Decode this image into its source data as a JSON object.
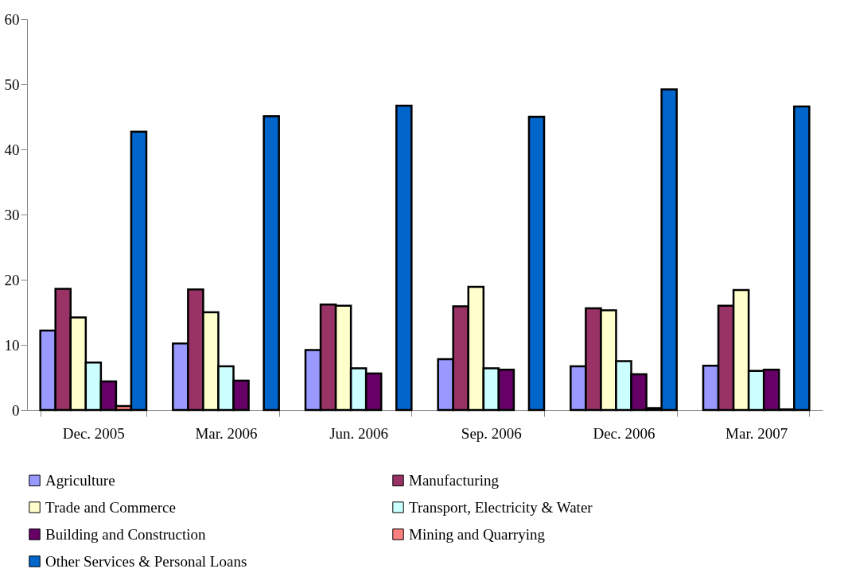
{
  "chart_data": {
    "type": "bar",
    "categories": [
      "Dec. 2005",
      "Mar. 2006",
      "Jun. 2006",
      "Sep. 2006",
      "Dec. 2006",
      "Mar. 2007"
    ],
    "series": [
      {
        "name": "Agriculture",
        "color": "#9999ff",
        "values": [
          12.2,
          10.2,
          9.2,
          7.8,
          6.7,
          6.8
        ]
      },
      {
        "name": "Manufacturing",
        "color": "#993366",
        "values": [
          18.6,
          18.5,
          16.2,
          15.9,
          15.6,
          16.0
        ]
      },
      {
        "name": "Trade and Commerce",
        "color": "#ffffcc",
        "values": [
          14.2,
          15.0,
          16.0,
          18.9,
          15.3,
          18.4
        ]
      },
      {
        "name": "Transport, Electricity & Water",
        "color": "#ccffff",
        "values": [
          7.3,
          6.7,
          6.4,
          6.4,
          7.5,
          6.0
        ]
      },
      {
        "name": "Building and Construction",
        "color": "#660066",
        "values": [
          4.4,
          4.5,
          5.6,
          6.2,
          5.5,
          6.2
        ]
      },
      {
        "name": "Mining and Quarrying",
        "color": "#ff8080",
        "values": [
          0.6,
          null,
          null,
          null,
          0.3,
          0.1
        ]
      },
      {
        "name": "Other Services & Personal Loans",
        "color": "#0066cc",
        "values": [
          42.7,
          45.1,
          46.7,
          45.0,
          49.2,
          46.6
        ]
      }
    ],
    "ylim": [
      0,
      60
    ],
    "yticks": [
      0,
      10,
      20,
      30,
      40,
      50,
      60
    ],
    "grid": false,
    "legend": "bottom"
  }
}
